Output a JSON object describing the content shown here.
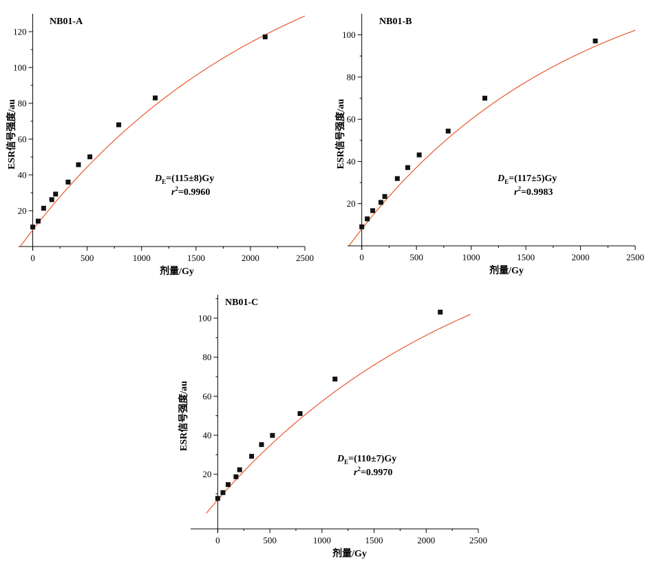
{
  "figure": {
    "colors": {
      "fit_line": "#e8572a",
      "marker": "#111111",
      "axis": "#000000"
    }
  },
  "chart_data": [
    {
      "type": "scatter",
      "panel_label": "NB01-A",
      "xlabel": "剂量/Gy",
      "ylabel": "ESR信号强度/au",
      "xlim": [
        -130,
        2500
      ],
      "ylim": [
        0,
        130
      ],
      "xticks": [
        0,
        500,
        1000,
        1500,
        2000,
        2500
      ],
      "yticks": [
        20,
        40,
        60,
        80,
        100,
        120
      ],
      "points": {
        "x": [
          0,
          50,
          100,
          175,
          210,
          325,
          420,
          525,
          790,
          1125,
          2135
        ],
        "y": [
          10.9,
          14.2,
          21.4,
          26.2,
          29.3,
          36.0,
          45.7,
          50.1,
          68.0,
          83.0,
          117.1
        ]
      },
      "fit": {
        "model": "saturating_exponential",
        "de": 115,
        "i_sat": 190,
        "d0": 2310,
        "x_start": -115,
        "x_end": 2500
      },
      "annotation": {
        "d_symbol": "D",
        "d_sub": "E",
        "d_value": "=(115±8)Gy",
        "r_symbol": "r",
        "r_sup": "2",
        "r_value": "=0.9960"
      }
    },
    {
      "type": "scatter",
      "panel_label": "NB01-B",
      "xlabel": "剂量/Gy",
      "ylabel": "ESR信号强度/au",
      "xlim": [
        -130,
        2500
      ],
      "ylim": [
        0,
        110
      ],
      "xticks": [
        0,
        500,
        1000,
        1500,
        2000,
        2500
      ],
      "yticks": [
        20,
        40,
        60,
        80,
        100
      ],
      "points": {
        "x": [
          0,
          50,
          100,
          175,
          210,
          325,
          420,
          525,
          790,
          1125,
          2135
        ],
        "y": [
          9.0,
          12.8,
          16.7,
          20.6,
          23.4,
          31.9,
          37.1,
          43.1,
          54.4,
          70.0,
          97.1
        ]
      },
      "fit": {
        "model": "saturating_exponential",
        "de": 117,
        "i_sat": 140,
        "d0": 2000,
        "x_start": -115,
        "x_end": 2500
      },
      "annotation": {
        "d_symbol": "D",
        "d_sub": "E",
        "d_value": "=(117±5)Gy",
        "r_symbol": "r",
        "r_sup": "2",
        "r_value": "=0.9983"
      }
    },
    {
      "type": "scatter",
      "panel_label": "NB01-C",
      "xlabel": "剂量/Gy",
      "ylabel": "ESR信号强度/au",
      "xlim": [
        -260,
        2500
      ],
      "ylim": [
        -8,
        112
      ],
      "xticks": [
        0,
        500,
        1000,
        1500,
        2000,
        2500
      ],
      "yticks": [
        20,
        40,
        60,
        80,
        100
      ],
      "points": {
        "x": [
          0,
          50,
          100,
          175,
          210,
          325,
          420,
          525,
          790,
          1125,
          2135
        ],
        "y": [
          7.6,
          10.6,
          14.7,
          18.7,
          22.3,
          29.2,
          35.2,
          39.9,
          51.1,
          68.8,
          103.1
        ]
      },
      "fit": {
        "model": "saturating_exponential",
        "de": 110,
        "i_sat": 160,
        "d0": 2500,
        "x_start": -110,
        "x_end": 2425
      },
      "annotation": {
        "d_symbol": "D",
        "d_sub": "E",
        "d_value": "=(110±7)Gy",
        "r_symbol": "r",
        "r_sup": "2",
        "r_value": "=0.9970"
      }
    }
  ]
}
